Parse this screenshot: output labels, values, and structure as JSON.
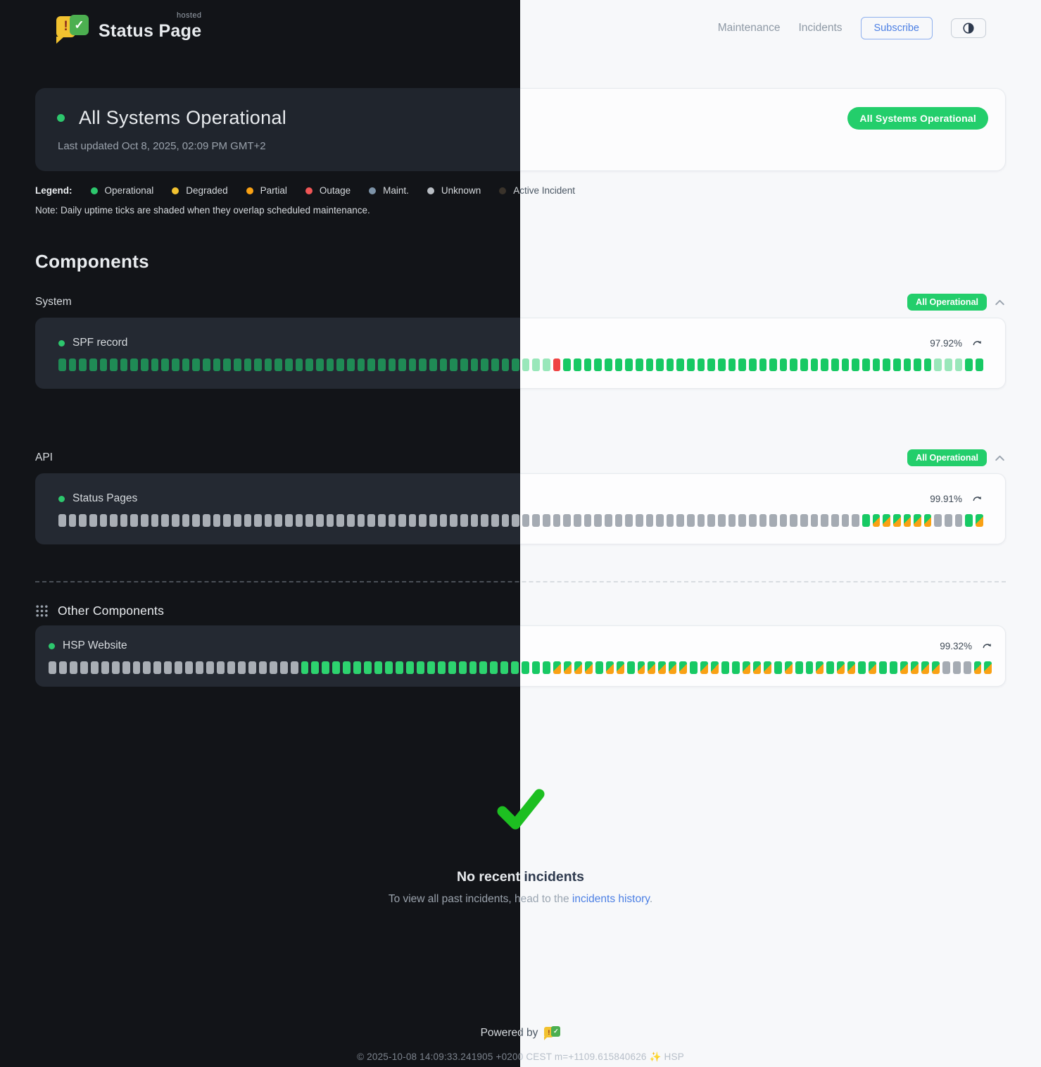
{
  "brand": {
    "name": "Status Page",
    "hosted": "hosted",
    "logo_exclaim": "!",
    "logo_check": "✓"
  },
  "nav": {
    "maintenance": "Maintenance",
    "incidents": "Incidents",
    "subscribe": "Subscribe"
  },
  "banner": {
    "title": "All Systems Operational",
    "last_updated": "Last updated Oct 8, 2025, 02:09 PM GMT+2",
    "badge": "All Systems Operational",
    "badge_color": "#23ce6b"
  },
  "legend": {
    "label": "Legend:",
    "items": [
      {
        "label": "Operational",
        "color": "#2dc76d"
      },
      {
        "label": "Degraded",
        "color": "#f2c230"
      },
      {
        "label": "Partial",
        "color": "#f9a114"
      },
      {
        "label": "Outage",
        "color": "#f05656"
      },
      {
        "label": "Maint.",
        "color": "#7d93a8"
      },
      {
        "label": "Unknown",
        "color": "#b9bec4"
      },
      {
        "label": "Active Incident",
        "color": "#3a332b"
      }
    ],
    "note": "Note: Daily uptime ticks are shaded when they overlap scheduled maintenance."
  },
  "components": {
    "heading": "Components",
    "groups": [
      {
        "label": "System",
        "badge": "All Operational",
        "row": {
          "name": "SPF record",
          "uptime": "97.92%",
          "ticks": "gggggggggggggggggggggggggggggggggggggggggggggsssxggggggggggggggggggggggggggggggggggggsssgg"
        }
      },
      {
        "label": "API",
        "badge": "All Operational",
        "row": {
          "name": "Status Pages",
          "uptime": "99.91%",
          "ticks": "uuuuuuuuuuuuuuuuuuuuuuuuuuuuuuuuuuuuuuuuuuuuuuuuuuuuuuuuuuuuuuuuuuuuuuuuuuuuuugppppppuuugp"
        }
      }
    ],
    "other": {
      "label": "Other Components",
      "row": {
        "name": "HSP Website",
        "uptime": "99.32%",
        "ticks": "uuuuuuuuuuuuuuuuuuuuuuuubbbbbbbbbbbbbbbbbbbbbbbbppppbppbpppppbppbbpppbpbbpbppbpbbppppuuupp"
      }
    },
    "tick_states": {
      "g": "operational",
      "b": "operational-recent",
      "s": "operational-shaded-maintenance",
      "u": "unknown",
      "x": "outage",
      "p": "partial"
    }
  },
  "incidents_section": {
    "title": "No recent incidents",
    "subtitle_prefix": "To view all past incidents, head to the ",
    "link": "incidents history",
    "subtitle_suffix": ".",
    "check_color": "#1dbf21"
  },
  "footer": {
    "powered_by": "Powered by",
    "copyright": "© 2025-10-08 14:09:33.241905 +0200 CEST m=+1109.615840626 ✨ HSP"
  }
}
